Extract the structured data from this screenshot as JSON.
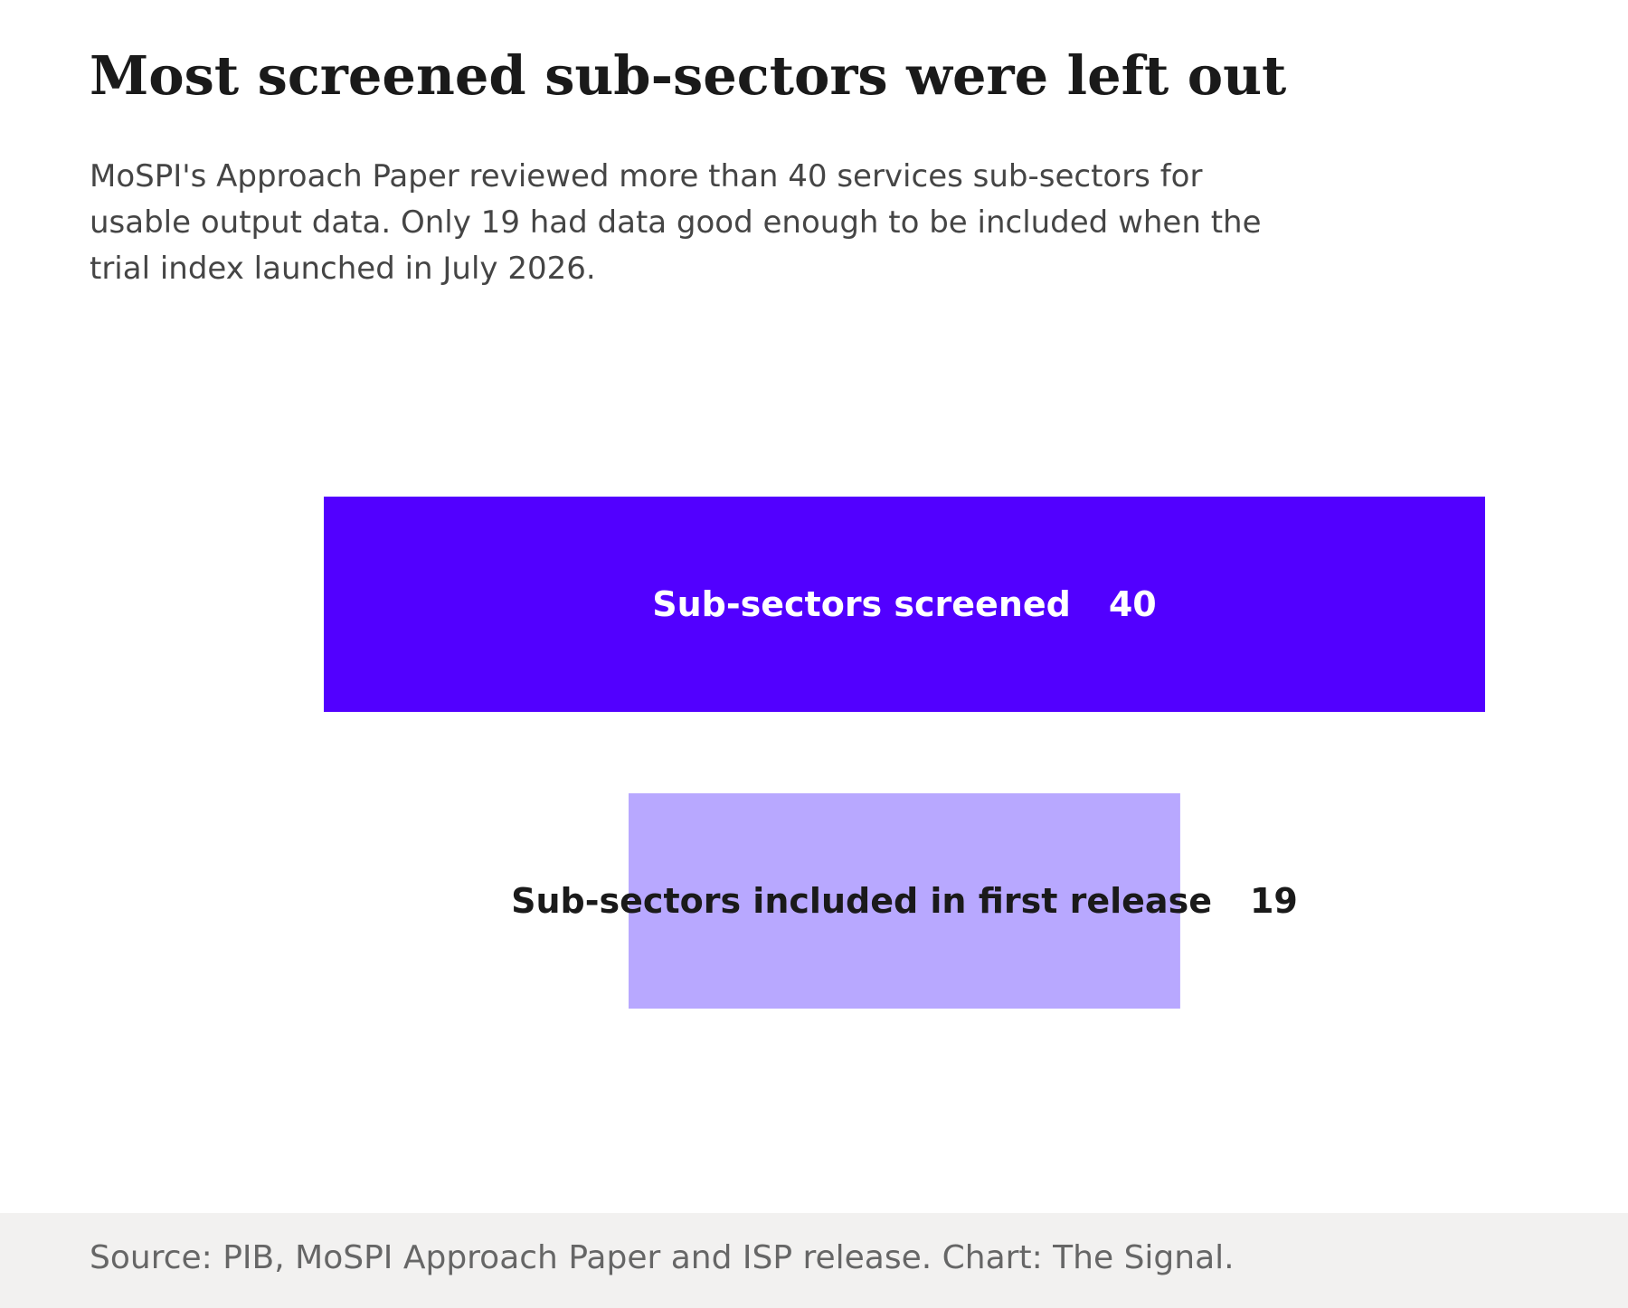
{
  "header": {
    "title": "Most screened sub-sectors were left out",
    "subtitle": "MoSPI's Approach Paper reviewed more than 40 services sub-sectors for usable output data. Only 19 had data good enough to be included when the trial index launched in July 2026."
  },
  "footer": {
    "source": "Source: PIB, MoSPI Approach Paper and ISP release. Chart: The Signal."
  },
  "colors": {
    "primary_bar": "#5200ff",
    "secondary_bar": "#b8a8ff",
    "light_label": "#ffffff",
    "dark_label": "#1a1a1a",
    "footer_background": "#f2f1f0"
  },
  "chart_data": {
    "type": "bar",
    "orientation": "horizontal",
    "alignment": "centered",
    "grid": false,
    "legend": "none",
    "categories": [
      "Sub-sectors screened",
      "Sub-sectors included in first release"
    ],
    "values": [
      40,
      19
    ],
    "xlim": [
      0,
      40
    ]
  }
}
